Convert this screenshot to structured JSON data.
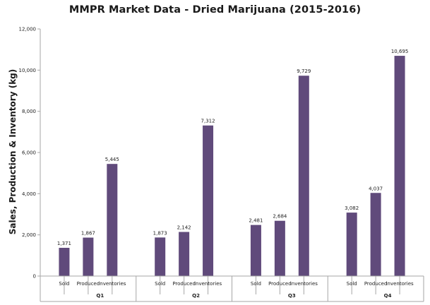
{
  "chart_data": {
    "type": "bar",
    "title": "MMPR Market Data - Dried Marijuana (2015-2016)",
    "ylabel": "Sales, Production & Inventory (kg)",
    "xlabel": "",
    "ylim": [
      0,
      12000
    ],
    "yticks": [
      "0",
      "2,000",
      "4,000",
      "6,000",
      "8,000",
      "10,000",
      "12,000"
    ],
    "ytick_values": [
      0,
      2000,
      4000,
      6000,
      8000,
      10000,
      12000
    ],
    "groups": [
      "Q1",
      "Q2",
      "Q3",
      "Q4"
    ],
    "categories": [
      "Sold",
      "Produced",
      "Inventories"
    ],
    "values": [
      [
        1371,
        1867,
        5445
      ],
      [
        1873,
        2142,
        7312
      ],
      [
        2481,
        2684,
        9729
      ],
      [
        3082,
        4037,
        10695
      ]
    ],
    "value_labels": [
      [
        "1,371",
        "1,867",
        "5,445"
      ],
      [
        "1,873",
        "2,142",
        "7,312"
      ],
      [
        "2,481",
        "2,684",
        "9,729"
      ],
      [
        "3,082",
        "4,037",
        "10,695"
      ]
    ],
    "bar_color": "#604A7B",
    "axis_color": "#A6A6A6",
    "grid": false,
    "legend": "none"
  }
}
